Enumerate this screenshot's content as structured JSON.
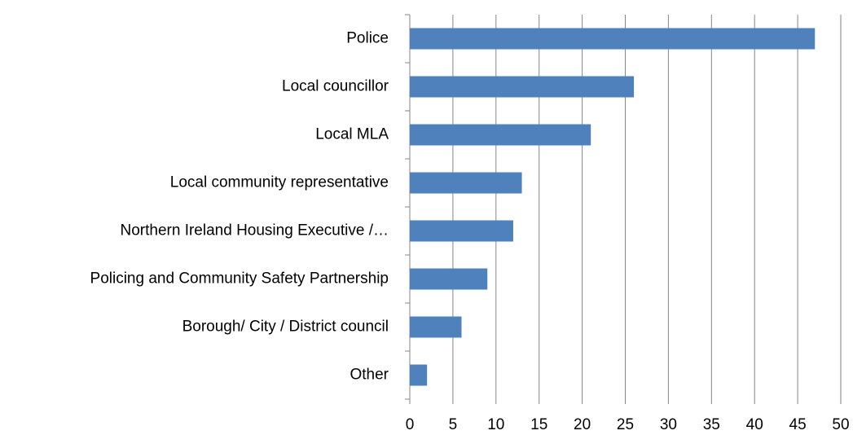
{
  "chart_data": {
    "type": "bar",
    "orientation": "horizontal",
    "categories": [
      "Police",
      "Local councillor",
      "Local MLA",
      "Local community representative",
      "Northern Ireland Housing Executive /…",
      "Policing and Community Safety Partnership",
      "Borough/ City / District council",
      "Other"
    ],
    "values": [
      47,
      26,
      21,
      13,
      12,
      9,
      6,
      2
    ],
    "color": "#4f81bd",
    "xlim": [
      0,
      50
    ],
    "xticks": [
      0,
      5,
      10,
      15,
      20,
      25,
      30,
      35,
      40,
      45,
      50
    ],
    "grid": true
  }
}
